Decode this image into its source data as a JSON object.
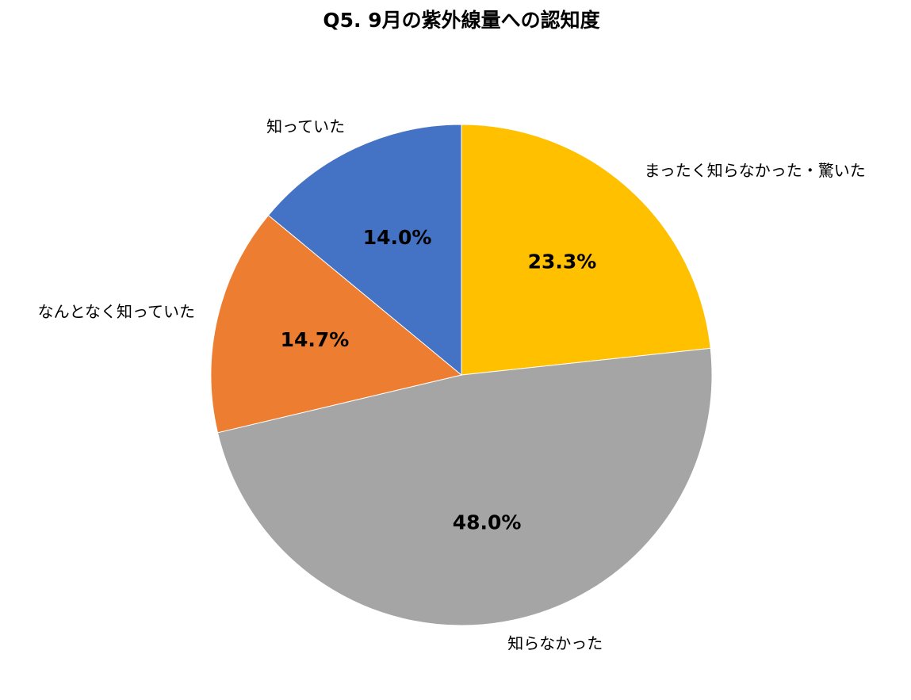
{
  "chart_data": {
    "type": "pie",
    "title": "Q5. 9月の紫外線量への認知度",
    "categories": [
      "まったく知らなかった・驚いた",
      "知らなかった",
      "なんとなく知っていた",
      "知っていた"
    ],
    "values": [
      23.3,
      48.0,
      14.7,
      14.0
    ],
    "value_labels": [
      "23.3%",
      "48.0%",
      "14.7%",
      "14.0%"
    ],
    "colors": [
      "#FFC000",
      "#A5A5A5",
      "#ED7D31",
      "#4472C4"
    ]
  }
}
